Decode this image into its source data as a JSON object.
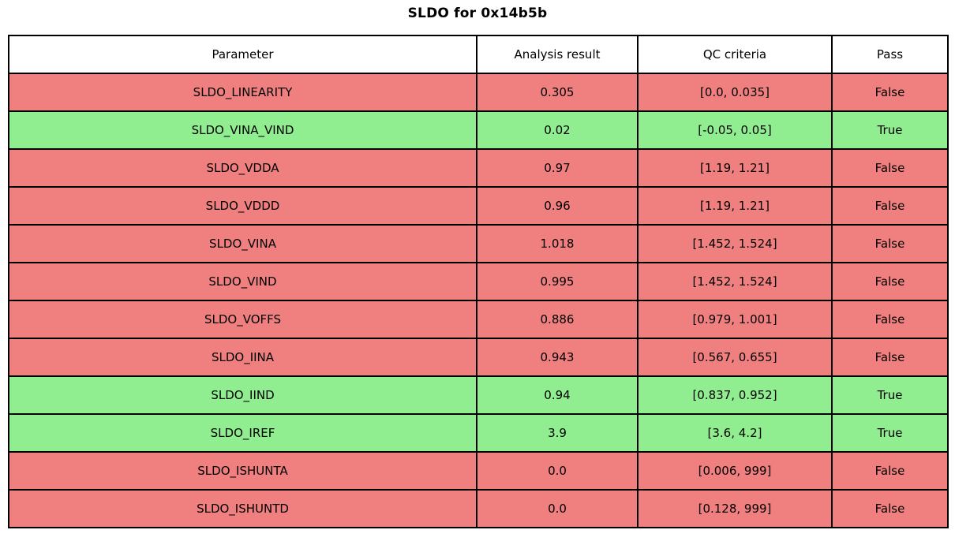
{
  "title": "SLDO for 0x14b5b",
  "colors": {
    "fail_row": "#f08080",
    "pass_row": "#90ee90",
    "border": "#000000",
    "header_bg": "#ffffff",
    "text": "#000000"
  },
  "table": {
    "headers": [
      "Parameter",
      "Analysis result",
      "QC criteria",
      "Pass"
    ],
    "rows": [
      {
        "parameter": "SLDO_LINEARITY",
        "analysis_result": "0.305",
        "qc_criteria": "[0.0, 0.035]",
        "pass": "False",
        "status": "fail"
      },
      {
        "parameter": "SLDO_VINA_VIND",
        "analysis_result": "0.02",
        "qc_criteria": "[-0.05, 0.05]",
        "pass": "True",
        "status": "pass"
      },
      {
        "parameter": "SLDO_VDDA",
        "analysis_result": "0.97",
        "qc_criteria": "[1.19, 1.21]",
        "pass": "False",
        "status": "fail"
      },
      {
        "parameter": "SLDO_VDDD",
        "analysis_result": "0.96",
        "qc_criteria": "[1.19, 1.21]",
        "pass": "False",
        "status": "fail"
      },
      {
        "parameter": "SLDO_VINA",
        "analysis_result": "1.018",
        "qc_criteria": "[1.452, 1.524]",
        "pass": "False",
        "status": "fail"
      },
      {
        "parameter": "SLDO_VIND",
        "analysis_result": "0.995",
        "qc_criteria": "[1.452, 1.524]",
        "pass": "False",
        "status": "fail"
      },
      {
        "parameter": "SLDO_VOFFS",
        "analysis_result": "0.886",
        "qc_criteria": "[0.979, 1.001]",
        "pass": "False",
        "status": "fail"
      },
      {
        "parameter": "SLDO_IINA",
        "analysis_result": "0.943",
        "qc_criteria": "[0.567, 0.655]",
        "pass": "False",
        "status": "fail"
      },
      {
        "parameter": "SLDO_IIND",
        "analysis_result": "0.94",
        "qc_criteria": "[0.837, 0.952]",
        "pass": "True",
        "status": "pass"
      },
      {
        "parameter": "SLDO_IREF",
        "analysis_result": "3.9",
        "qc_criteria": "[3.6, 4.2]",
        "pass": "True",
        "status": "pass"
      },
      {
        "parameter": "SLDO_ISHUNTA",
        "analysis_result": "0.0",
        "qc_criteria": "[0.006, 999]",
        "pass": "False",
        "status": "fail"
      },
      {
        "parameter": "SLDO_ISHUNTD",
        "analysis_result": "0.0",
        "qc_criteria": "[0.128, 999]",
        "pass": "False",
        "status": "fail"
      }
    ]
  },
  "chart_data": {
    "type": "table",
    "title": "SLDO for 0x14b5b",
    "columns": [
      "Parameter",
      "Analysis result",
      "QC criteria",
      "Pass"
    ],
    "rows": [
      [
        "SLDO_LINEARITY",
        0.305,
        "[0.0, 0.035]",
        "False"
      ],
      [
        "SLDO_VINA_VIND",
        0.02,
        "[-0.05, 0.05]",
        "True"
      ],
      [
        "SLDO_VDDA",
        0.97,
        "[1.19, 1.21]",
        "False"
      ],
      [
        "SLDO_VDDD",
        0.96,
        "[1.19, 1.21]",
        "False"
      ],
      [
        "SLDO_VINA",
        1.018,
        "[1.452, 1.524]",
        "False"
      ],
      [
        "SLDO_VIND",
        0.995,
        "[1.452, 1.524]",
        "False"
      ],
      [
        "SLDO_VOFFS",
        0.886,
        "[0.979, 1.001]",
        "False"
      ],
      [
        "SLDO_IINA",
        0.943,
        "[0.567, 0.655]",
        "False"
      ],
      [
        "SLDO_IIND",
        0.94,
        "[0.837, 0.952]",
        "True"
      ],
      [
        "SLDO_IREF",
        3.9,
        "[3.6, 4.2]",
        "True"
      ],
      [
        "SLDO_ISHUNTA",
        0.0,
        "[0.006, 999]",
        "False"
      ],
      [
        "SLDO_ISHUNTD",
        0.0,
        "[0.128, 999]",
        "False"
      ]
    ],
    "layout_hints": {
      "row_color_pass": "#90ee90",
      "row_color_fail": "#f08080",
      "header_background": "#ffffff",
      "grid": true
    }
  }
}
